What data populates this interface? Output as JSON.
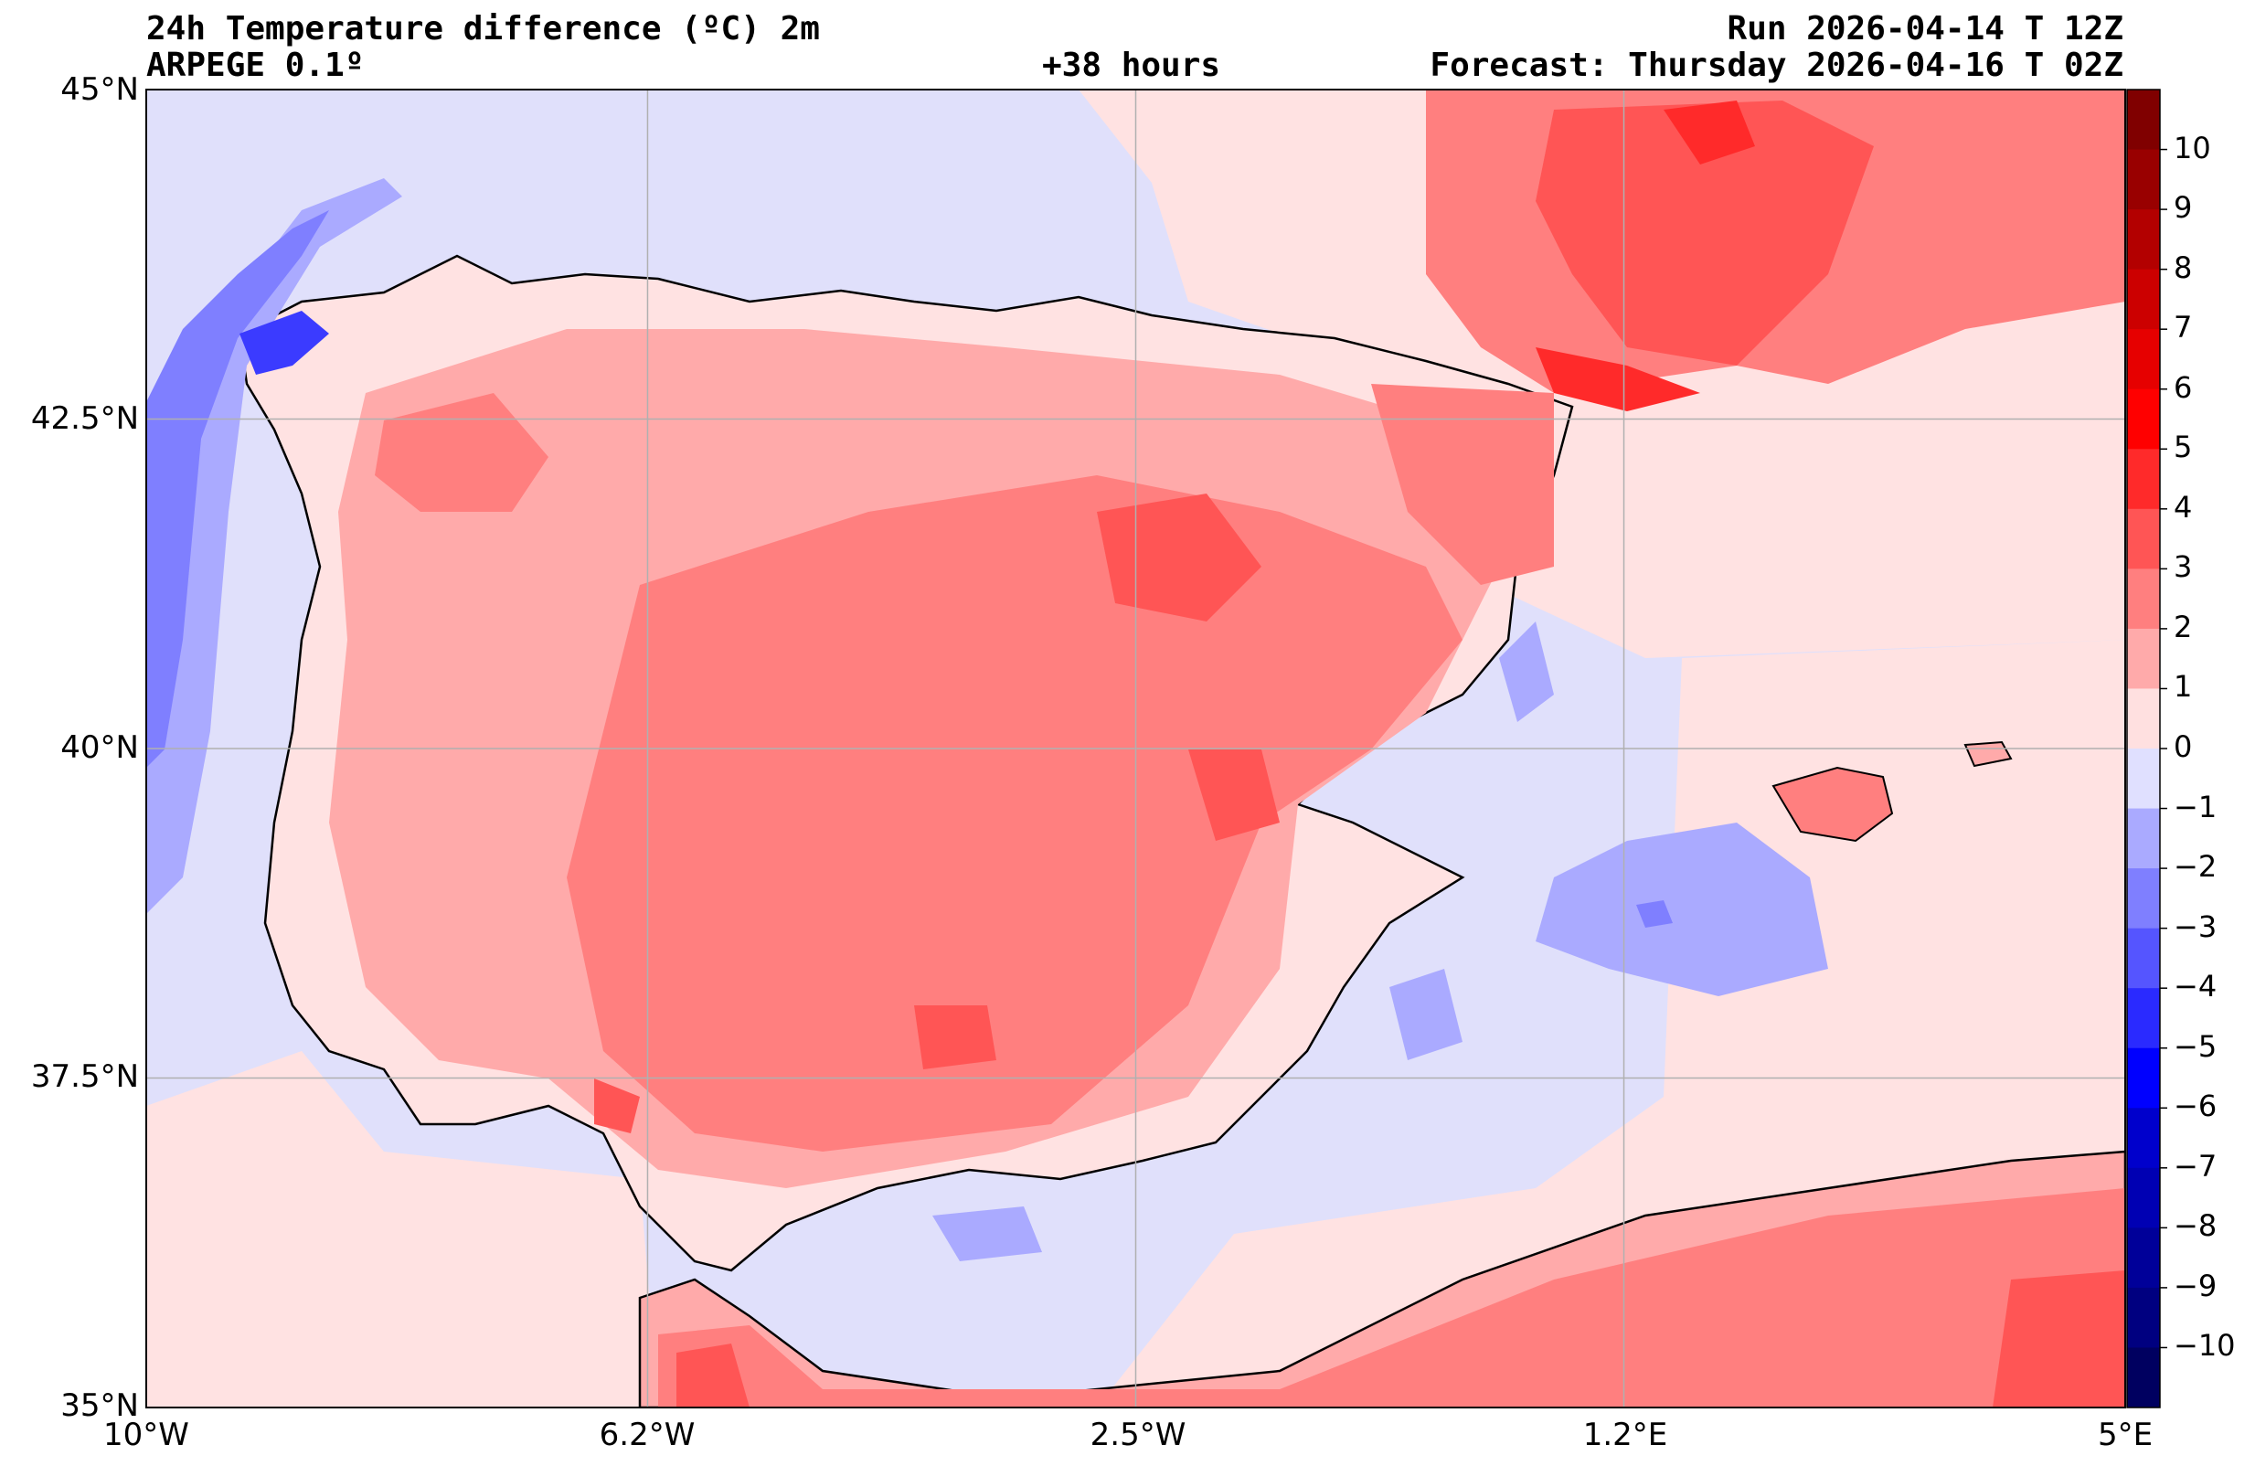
{
  "header": {
    "title": "24h Temperature difference (ºC) 2m",
    "model": "ARPEGE 0.1º",
    "lead_time": "+38 hours",
    "run": "Run 2026-04-14 T 12Z",
    "forecast": "Forecast: Thursday 2026-04-16 T 02Z"
  },
  "map": {
    "lon_range": [
      -10,
      5
    ],
    "lat_range": [
      35,
      45
    ],
    "lon_ticks": [
      {
        "value": -10,
        "label": "10°W"
      },
      {
        "value": -6.2,
        "label": "6.2°W"
      },
      {
        "value": -2.5,
        "label": "2.5°W"
      },
      {
        "value": 1.2,
        "label": "1.2°E"
      },
      {
        "value": 5,
        "label": "5°E"
      }
    ],
    "lat_ticks": [
      {
        "value": 45,
        "label": "45°N"
      },
      {
        "value": 42.5,
        "label": "42.5°N"
      },
      {
        "value": 40,
        "label": "40°N"
      },
      {
        "value": 37.5,
        "label": "37.5°N"
      },
      {
        "value": 35,
        "label": "35°N"
      }
    ],
    "grid": true
  },
  "colorbar": {
    "labels": [
      "10",
      "9",
      "8",
      "7",
      "6",
      "5",
      "4",
      "3",
      "2",
      "1",
      "0",
      "−1",
      "−2",
      "−3",
      "−4",
      "−5",
      "−6",
      "−7",
      "−8",
      "−9",
      "−10"
    ],
    "colors": [
      "#800000",
      "#990000",
      "#b30000",
      "#cc0000",
      "#e60000",
      "#ff0000",
      "#ff2a2a",
      "#ff5555",
      "#ff7f7f",
      "#ffaaaa",
      "#ffe0e0",
      "#e0e0ff",
      "#aaaaff",
      "#7f7fff",
      "#5555ff",
      "#2a2aff",
      "#0000ff",
      "#0000cc",
      "#0000b3",
      "#000099",
      "#000080",
      "#000060"
    ]
  },
  "palette": {
    "sea_neutral": "#e0e0fb",
    "land_light": "#ffe2e2",
    "land_1": "#ffaaaa",
    "land_2": "#ff7f7f",
    "land_3": "#ff5555",
    "land_4": "#ff2a2a",
    "cool_1": "#aaaaff",
    "cool_2": "#7f7fff",
    "cool_3": "#3b3bff"
  }
}
